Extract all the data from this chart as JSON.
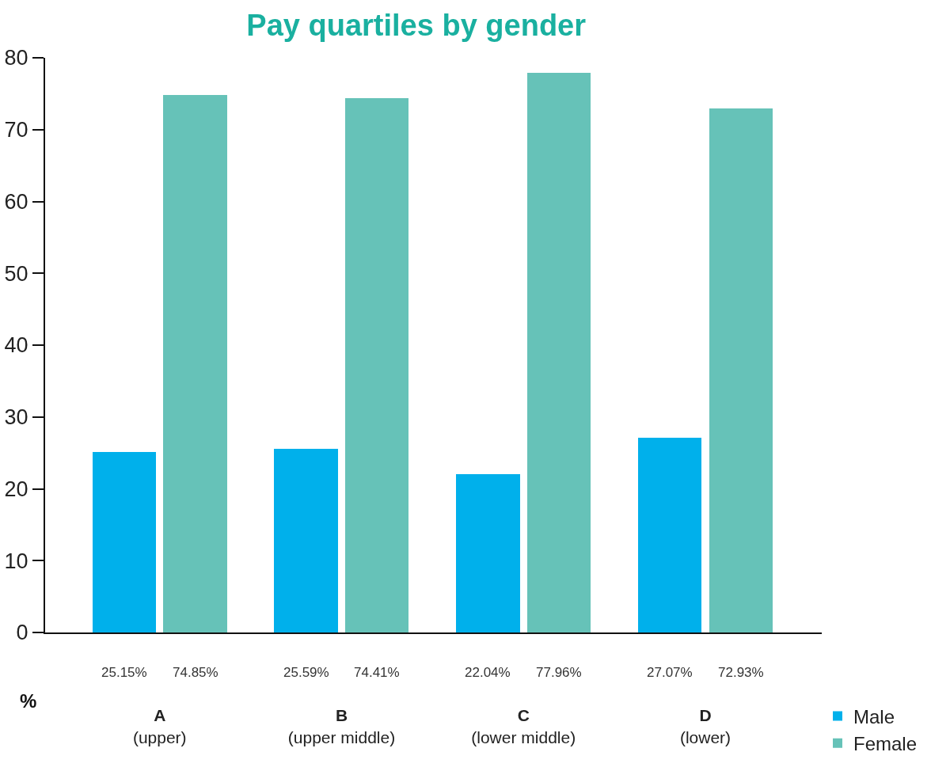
{
  "chart_data": {
    "type": "bar",
    "title": "Pay quartiles by gender",
    "ylabel": "%",
    "categories": [
      "A\n(upper)",
      "B\n(upper middle)",
      "C\n(lower middle)",
      "D\n(lower)"
    ],
    "series": [
      {
        "name": "Male",
        "color": "#00b0eb",
        "values": [
          25.15,
          25.59,
          22.04,
          27.07
        ],
        "value_labels": [
          "25.15%",
          "25.59%",
          "22.04%",
          "27.07%"
        ]
      },
      {
        "name": "Female",
        "color": "#66c2b8",
        "values": [
          74.85,
          74.41,
          77.96,
          72.93
        ],
        "value_labels": [
          "74.85%",
          "74.41%",
          "77.96%",
          "72.93%"
        ]
      }
    ],
    "ylim": [
      0,
      80
    ],
    "yticks": [
      0,
      10,
      20,
      30,
      40,
      50,
      60,
      70,
      80
    ],
    "grid": false,
    "legend": "bottom right"
  }
}
